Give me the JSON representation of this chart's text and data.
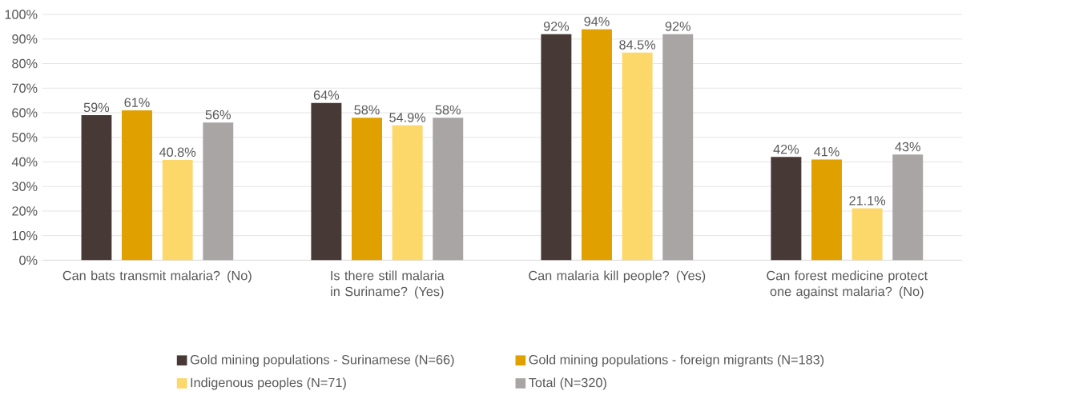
{
  "chart_data": {
    "type": "bar",
    "categories": [
      "Can bats transmit malaria? (No)",
      "Is there still malaria in Suriname? (Yes)",
      "Can malaria kill people? (Yes)",
      "Can forest medicine protect one against malaria? (No)"
    ],
    "series": [
      {
        "name": "Gold mining populations - Surinamese (N=66)",
        "color": "#473a36",
        "values": [
          59,
          64,
          92,
          42
        ],
        "value_labels": [
          "59%",
          "64%",
          "92%",
          "42%"
        ]
      },
      {
        "name": "Gold mining populations - foreign migrants (N=183)",
        "color": "#e0a000",
        "values": [
          61,
          58,
          94,
          41
        ],
        "value_labels": [
          "61%",
          "58%",
          "94%",
          "41%"
        ]
      },
      {
        "name": "Indigenous peoples (N=71)",
        "color": "#fcd76a",
        "values": [
          40.8,
          54.9,
          84.5,
          21.1
        ],
        "value_labels": [
          "40.8%",
          "54.9%",
          "84.5%",
          "21.1%"
        ]
      },
      {
        "name": "Total (N=320)",
        "color": "#a9a5a5",
        "values": [
          56,
          58,
          92,
          43
        ],
        "value_labels": [
          "56%",
          "58%",
          "92%",
          "43%"
        ]
      }
    ],
    "ylim": [
      0,
      100
    ],
    "yticks": [
      {
        "value": 0,
        "label": "0%"
      },
      {
        "value": 10,
        "label": "10%"
      },
      {
        "value": 20,
        "label": "20%"
      },
      {
        "value": 30,
        "label": "30%"
      },
      {
        "value": 40,
        "label": "40%"
      },
      {
        "value": 50,
        "label": "50%"
      },
      {
        "value": 60,
        "label": "60%"
      },
      {
        "value": 70,
        "label": "70%"
      },
      {
        "value": 80,
        "label": "80%"
      },
      {
        "value": 90,
        "label": "90%"
      },
      {
        "value": 100,
        "label": "100%"
      }
    ],
    "grid": "y",
    "legend": "bottom"
  }
}
